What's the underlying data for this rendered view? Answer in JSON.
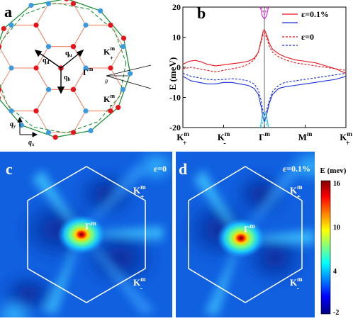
{
  "panel_a": {
    "letter": "a",
    "labels": {
      "qd": "q",
      "qd_sub": "d",
      "qu": "q",
      "qu_sub": "u",
      "qb": "q",
      "qb_sub": "b",
      "gamma": "Γ",
      "gamma_sup": "m",
      "kplus": "K",
      "kplus_sup": "m",
      "kplus_sub": "+",
      "kminus": "K",
      "kminus_sup": "m",
      "kminus_sub": "-",
      "theta": "θ",
      "qy": "q",
      "qy_sub": "y",
      "qx": "q",
      "qx_sub": "x"
    },
    "colors": {
      "red_dot": "#e8141c",
      "blue_dot": "#3b9be0",
      "hex_line": "#f07d64",
      "green": "#1f8f3a"
    }
  },
  "chart_data": {
    "type": "line",
    "panel_letter": "b",
    "ylabel": "E (meV)",
    "ylim": [
      -20,
      20
    ],
    "yticks": [
      -20,
      -10,
      0,
      10,
      20
    ],
    "xticks": [
      {
        "pos": 0,
        "label": "K",
        "sup": "m",
        "sub": "+"
      },
      {
        "pos": 1,
        "label": "K",
        "sup": "m",
        "sub": "-"
      },
      {
        "pos": 2,
        "label": "Γ",
        "sup": "m",
        "sub": ""
      },
      {
        "pos": 3,
        "label": "M",
        "sup": "m",
        "sub": ""
      },
      {
        "pos": 4,
        "label": "K",
        "sup": "m",
        "sub": "+"
      }
    ],
    "xlim": [
      0,
      4
    ],
    "legend": [
      {
        "label": "ε=0.1%",
        "style": "solid"
      },
      {
        "label": "ε=0",
        "style": "dashed"
      }
    ],
    "legend_position": "top-right",
    "series": [
      {
        "group": "ε=0.1%",
        "color": "#e8141c",
        "dashed": false,
        "x": [
          0,
          0.15,
          0.3,
          0.45,
          0.6,
          0.8,
          1.0,
          1.2,
          1.4,
          1.6,
          1.75,
          1.85,
          1.92,
          1.97,
          2.0,
          2.05,
          2.12,
          2.2,
          2.35,
          2.5,
          2.75,
          3.0,
          3.25,
          3.5,
          3.75,
          4.0
        ],
        "y": [
          1,
          2,
          2.3,
          1.8,
          1,
          0.5,
          0.8,
          1.2,
          1.5,
          2,
          3,
          5,
          9,
          12,
          12.5,
          11,
          8,
          6,
          4.5,
          3.5,
          2.5,
          2,
          1.5,
          0.5,
          -0.5,
          -2
        ]
      },
      {
        "group": "ε=0.1%",
        "color": "#1a2fd8",
        "dashed": false,
        "x": [
          0,
          0.2,
          0.4,
          0.6,
          0.8,
          1.0,
          1.2,
          1.4,
          1.6,
          1.75,
          1.85,
          1.92,
          1.97,
          2.0,
          2.05,
          2.12,
          2.2,
          2.35,
          2.5,
          2.75,
          3.0,
          3.25,
          3.5,
          3.75,
          4.0
        ],
        "y": [
          -3,
          -4.5,
          -5,
          -5.5,
          -5.5,
          -5,
          -5,
          -5.5,
          -6,
          -7,
          -9,
          -13,
          -17,
          -18,
          -16,
          -12,
          -9,
          -7,
          -6.5,
          -6,
          -5.5,
          -5,
          -4.5,
          -4,
          -3
        ]
      },
      {
        "group": "ε=0",
        "color": "#e8141c",
        "dashed": true,
        "x": [
          0,
          0.2,
          0.4,
          0.6,
          0.8,
          1.0,
          1.2,
          1.4,
          1.6,
          1.75,
          1.85,
          1.92,
          1.97,
          2.0,
          2.05,
          2.12,
          2.2,
          2.35,
          2.5,
          2.75,
          3.0,
          3.25,
          3.5,
          3.75,
          4.0
        ],
        "y": [
          -0.5,
          0,
          -0.5,
          -1,
          -1.5,
          -1,
          -0.5,
          0,
          1,
          2.5,
          5,
          8.5,
          11,
          11.5,
          10,
          7,
          5,
          3.5,
          2.5,
          1.5,
          1,
          0.5,
          0,
          -0.5,
          -1
        ]
      },
      {
        "group": "ε=0",
        "color": "#1a2fd8",
        "dashed": true,
        "x": [
          0,
          0.2,
          0.4,
          0.6,
          0.8,
          1.0,
          1.2,
          1.4,
          1.6,
          1.75,
          1.85,
          1.92,
          1.97,
          2.0,
          2.05,
          2.12,
          2.2,
          2.35,
          2.5,
          2.75,
          3.0,
          3.25,
          3.5,
          3.75,
          4.0
        ],
        "y": [
          -2,
          -3,
          -3.5,
          -4,
          -4.2,
          -4,
          -3.8,
          -4,
          -4.5,
          -5.5,
          -7.5,
          -11,
          -15,
          -16,
          -14.5,
          -11,
          -8,
          -6,
          -5,
          -4.5,
          -4,
          -3.5,
          -3,
          -2.5,
          -2
        ]
      },
      {
        "group": "upper",
        "color": "#e020e0",
        "dashed": false,
        "x": [
          1.9,
          1.95,
          2.0,
          2.05,
          2.1
        ],
        "y": [
          20,
          17,
          16,
          17,
          20
        ]
      },
      {
        "group": "upper",
        "color": "#e020e0",
        "dashed": true,
        "x": [
          1.92,
          1.97,
          2.0,
          2.03,
          2.08
        ],
        "y": [
          20,
          18.5,
          17.5,
          18.5,
          20
        ]
      },
      {
        "group": "lower",
        "color": "#20c8e0",
        "dashed": false,
        "x": [
          1.9,
          1.95,
          2.0,
          2.05,
          2.1
        ],
        "y": [
          -20,
          -16,
          -15,
          -16,
          -20
        ]
      },
      {
        "group": "lower",
        "color": "#20c8e0",
        "dashed": true,
        "x": [
          1.92,
          1.97,
          2.0,
          2.03,
          2.08
        ],
        "y": [
          -20,
          -17.5,
          -16.5,
          -17.5,
          -20
        ]
      }
    ]
  },
  "panel_c": {
    "letter": "c",
    "strain": "ε=0",
    "gamma": "Γ",
    "gamma_sup": "m",
    "kplus": "K",
    "kplus_sup": "m",
    "kplus_sub": "+",
    "kminus": "K",
    "kminus_sup": "m",
    "kminus_sub": "-"
  },
  "panel_d": {
    "letter": "d",
    "strain": "ε=0.1%",
    "gamma": "Γ",
    "gamma_sup": "m",
    "kplus": "K",
    "kplus_sup": "m",
    "kplus_sub": "+",
    "kminus": "K",
    "kminus_sup": "m",
    "kminus_sub": "-"
  },
  "colorbar": {
    "title": "E (mev)",
    "ticks": [
      "16",
      "10",
      "4",
      "-2"
    ],
    "range": [
      -2,
      16
    ]
  }
}
